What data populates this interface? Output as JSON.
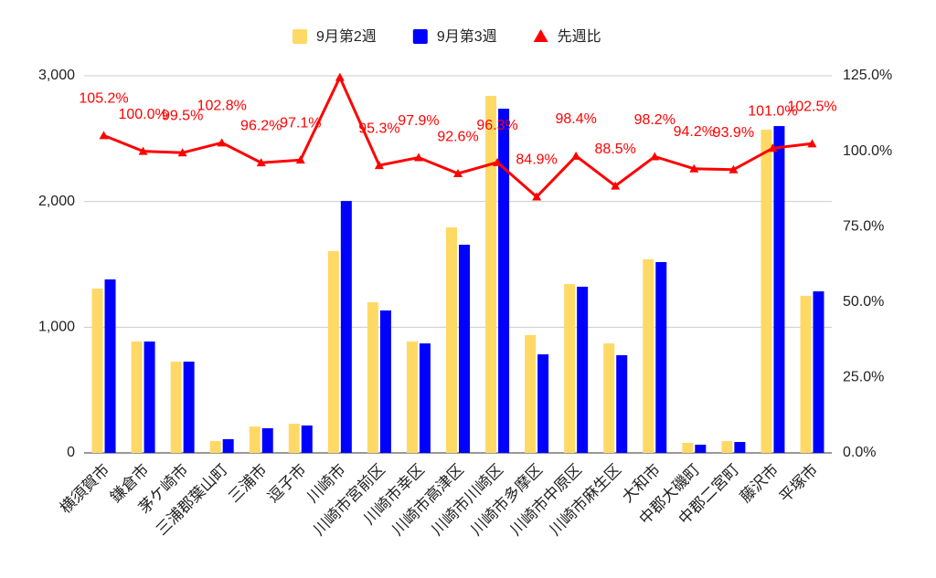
{
  "chart_data": {
    "type": "bar_line",
    "categories": [
      "横須賀市",
      "鎌倉市",
      "茅ケ崎市",
      "三浦郡葉山町",
      "三浦市",
      "逗子市",
      "川崎市",
      "川崎市宮前区",
      "川崎市幸区",
      "川崎市高津区",
      "川崎市川崎区",
      "川崎市多摩区",
      "川崎市中原区",
      "川崎市麻生区",
      "大和市",
      "中郡大磯町",
      "中郡二宮町",
      "藤沢市",
      "平塚市"
    ],
    "series": [
      {
        "name": "9月第2週",
        "type": "bar",
        "color": "#ffd966",
        "values": [
          1307,
          886,
          726,
          94,
          210,
          232,
          1605,
          1198,
          886,
          1794,
          2840,
          937,
          1343,
          871,
          1540,
          80,
          94,
          2571,
          1249
        ]
      },
      {
        "name": "9月第3週",
        "type": "bar",
        "color": "#0000ff",
        "values": [
          1380,
          886,
          726,
          109,
          196,
          218,
          2004,
          1133,
          871,
          1656,
          2738,
          784,
          1322,
          777,
          1518,
          65,
          87,
          2600,
          1285
        ]
      },
      {
        "name": "先週比",
        "type": "line",
        "axis": "y2",
        "color": "#ff0000",
        "values": [
          105.2,
          100.0,
          99.5,
          102.8,
          96.2,
          97.1,
          124.5,
          95.3,
          97.9,
          92.6,
          96.3,
          84.9,
          98.4,
          88.5,
          98.2,
          94.2,
          93.9,
          101.0,
          102.5
        ],
        "value_labels": [
          "105.2%",
          "100.0%",
          "99.5%",
          "102.8%",
          "96.2%",
          "97.1%",
          null,
          "95.3%",
          "97.9%",
          "92.6%",
          "96.3%",
          "84.9%",
          "98.4%",
          "88.5%",
          "98.2%",
          "94.2%",
          "93.9%",
          "101.0%",
          "102.5%"
        ]
      }
    ],
    "ylim": [
      0,
      3000
    ],
    "yticks": [
      0,
      {
        "value": 1000,
        "label": "1,000"
      },
      {
        "value": 2000,
        "label": "2,000"
      },
      {
        "value": 3000,
        "label": "3,000"
      }
    ],
    "y2lim": [
      0,
      125
    ],
    "y2ticks": [
      {
        "value": 0,
        "label": "0.0%"
      },
      {
        "value": 25,
        "label": "25.0%"
      },
      {
        "value": 50,
        "label": "50.0%"
      },
      {
        "value": 75,
        "label": "75.0%"
      },
      {
        "value": 100,
        "label": "100.0%"
      },
      {
        "value": 125,
        "label": "125.0%"
      }
    ],
    "grid": true,
    "legend": "top"
  }
}
